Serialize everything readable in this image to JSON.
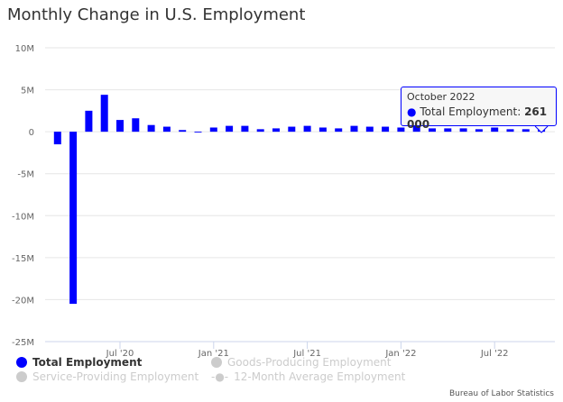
{
  "title": "Monthly Change in U.S. Employment",
  "source": "Bureau of Labor Statistics",
  "tooltip": {
    "header": "October 2022",
    "series": "Total Employment: ",
    "value": "261 000"
  },
  "legend": [
    {
      "label": "Total Employment",
      "active": true,
      "color": "#0000ff"
    },
    {
      "label": "Goods-Producing Employment",
      "active": false,
      "color": "#cccccc"
    },
    {
      "label": "Service-Providing Employment",
      "active": false,
      "color": "#cccccc"
    },
    {
      "label": "12-Month Average Employment",
      "active": false,
      "color": "#cccccc"
    }
  ],
  "chart_data": {
    "type": "bar",
    "title": "Monthly Change in U.S. Employment",
    "ylim": [
      -25000000,
      10000000
    ],
    "yticks": [
      "10M",
      "5M",
      "0",
      "-5M",
      "-10M",
      "-15M",
      "-20M",
      "-25M"
    ],
    "ytick_values": [
      10000000,
      5000000,
      0,
      -5000000,
      -10000000,
      -15000000,
      -20000000,
      -25000000
    ],
    "xticks": [
      {
        "label": "Jul '20",
        "month": "2020-07"
      },
      {
        "label": "Jan '21",
        "month": "2021-01"
      },
      {
        "label": "Jul '21",
        "month": "2021-07"
      },
      {
        "label": "Jan '22",
        "month": "2022-01"
      },
      {
        "label": "Jul '22",
        "month": "2022-07"
      }
    ],
    "grid": true,
    "bar_color": "#0000ff",
    "categories": [
      "2020-03",
      "2020-04",
      "2020-05",
      "2020-06",
      "2020-07",
      "2020-08",
      "2020-09",
      "2020-10",
      "2020-11",
      "2020-12",
      "2021-01",
      "2021-02",
      "2021-03",
      "2021-04",
      "2021-05",
      "2021-06",
      "2021-07",
      "2021-08",
      "2021-09",
      "2021-10",
      "2021-11",
      "2021-12",
      "2022-01",
      "2022-02",
      "2022-03",
      "2022-04",
      "2022-05",
      "2022-06",
      "2022-07",
      "2022-08",
      "2022-09",
      "2022-10"
    ],
    "series": [
      {
        "name": "Total Employment",
        "values": [
          -1500000,
          -20500000,
          2500000,
          4400000,
          1400000,
          1600000,
          800000,
          600000,
          200000,
          -100000,
          500000,
          700000,
          700000,
          300000,
          400000,
          600000,
          700000,
          500000,
          400000,
          700000,
          600000,
          600000,
          500000,
          700000,
          400000,
          400000,
          400000,
          300000,
          500000,
          300000,
          300000,
          261000
        ]
      }
    ]
  }
}
